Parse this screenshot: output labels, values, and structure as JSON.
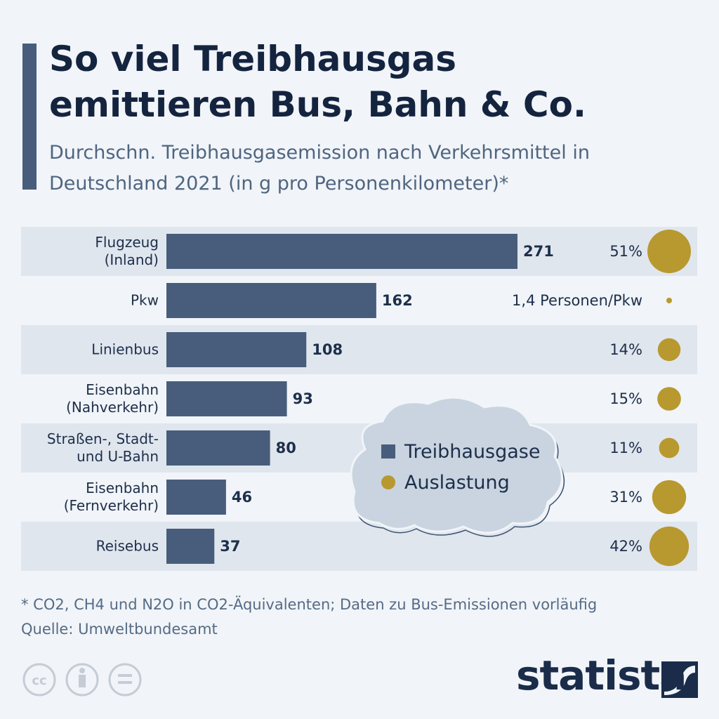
{
  "title": "So viel Treibhausgas emittieren Bus, Bahn & Co.",
  "subtitle": "Durchschn. Treibhausgasemission nach Verkehrsmittel in Deutschland 2021 (in g pro Personenkilometer)*",
  "chart_data": {
    "type": "bar",
    "orientation": "horizontal",
    "categories": [
      "Flugzeug\n(Inland)",
      "Pkw",
      "Linienbus",
      "Eisenbahn\n(Nahverkehr)",
      "Straßen-, Stadt-\nund U-Bahn",
      "Eisenbahn\n(Fernverkehr)",
      "Reisebus"
    ],
    "series": [
      {
        "name": "Treibhausgase",
        "color": "#475d7b",
        "values": [
          271,
          162,
          108,
          93,
          80,
          46,
          37
        ]
      },
      {
        "name": "Auslastung",
        "color": "#b8992f",
        "values": [
          51,
          null,
          14,
          15,
          11,
          31,
          42
        ],
        "value_labels": [
          "51%",
          null,
          "14%",
          "15%",
          "11%",
          "31%",
          "42%"
        ]
      }
    ],
    "pkw_note": "1,4 Personen/Pkw",
    "legend": "center"
  },
  "footnote": "* CO2, CH4 und N2O in CO2-Äquivalenten; Daten zu Bus-Emissionen vorläufig",
  "source": "Quelle: Umweltbundesamt",
  "brand": "statista"
}
